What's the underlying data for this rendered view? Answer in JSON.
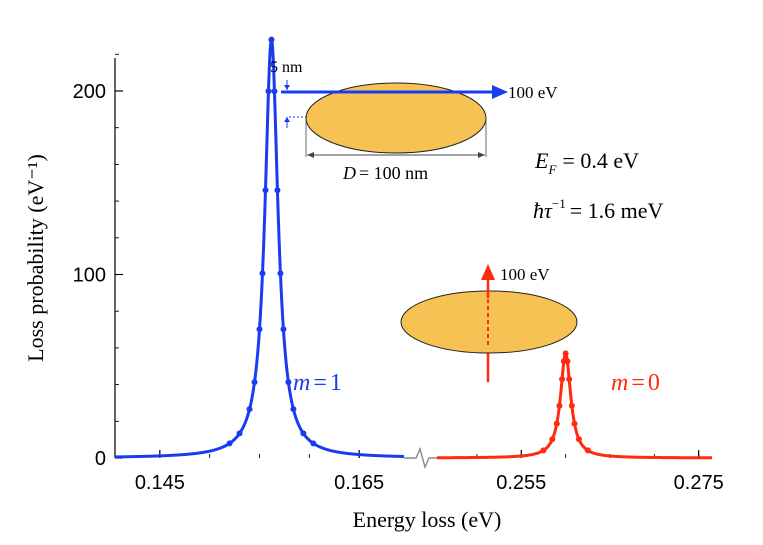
{
  "chart_data": {
    "type": "line",
    "xlabel": "Energy loss (eV)",
    "ylabel": "Loss probability (eV⁻¹)",
    "ylim": [
      0,
      220
    ],
    "yticks": [
      {
        "value": 0,
        "label": "0"
      },
      {
        "value": 100,
        "label": "100"
      },
      {
        "value": 200,
        "label": "200"
      }
    ],
    "panels": [
      {
        "name": "left",
        "xlim": [
          0.1405,
          0.1695
        ],
        "xticks": [
          {
            "value": 0.145,
            "label": "0.145"
          },
          {
            "value": 0.165,
            "label": "0.165"
          }
        ]
      },
      {
        "name": "right",
        "xlim": [
          0.2455,
          0.2765
        ],
        "xticks": [
          {
            "value": 0.255,
            "label": "0.255"
          },
          {
            "value": 0.275,
            "label": "0.275"
          }
        ]
      }
    ],
    "series": [
      {
        "name": "m = 1",
        "label_m": "m",
        "label_eq": "=",
        "label_n": "1",
        "panel": "left",
        "color": "#1a3cf0",
        "center": 0.1562,
        "peak": 228,
        "hwhm": 0.0008,
        "points_x": [
          0.152,
          0.153,
          0.154,
          0.1545,
          0.155,
          0.1553,
          0.1556,
          0.1559,
          0.1562,
          0.1565,
          0.1568,
          0.1571,
          0.1574,
          0.1579,
          0.1584,
          0.1594,
          0.1604
        ]
      },
      {
        "name": "m = 0",
        "label_m": "m",
        "label_eq": "=",
        "label_n": "0",
        "panel": "right",
        "color": "#ff2a10",
        "center": 0.26,
        "peak": 57,
        "hwhm": 0.0007,
        "points_x": [
          0.2575,
          0.2585,
          0.259,
          0.2593,
          0.2596,
          0.2598,
          0.26,
          0.2602,
          0.2604,
          0.2607,
          0.261,
          0.2615,
          0.2625
        ]
      }
    ],
    "annotations": {
      "ef_symbol": "E",
      "ef_sub": "F",
      "ef_value": "= 0.4 eV",
      "tau_symbol": "ħτ",
      "tau_sup": "−1",
      "tau_value": "= 1.6 meV",
      "beam_energy_top": "100 eV",
      "beam_energy_bottom": "100 eV",
      "gap": "5 nm",
      "diameter_symbol": "D",
      "diameter_value": "= 100 nm"
    },
    "colors": {
      "disk_fill": "#f7c254",
      "disk_stroke": "#222222",
      "blue": "#1a3cf0",
      "red": "#ff2a10"
    }
  }
}
